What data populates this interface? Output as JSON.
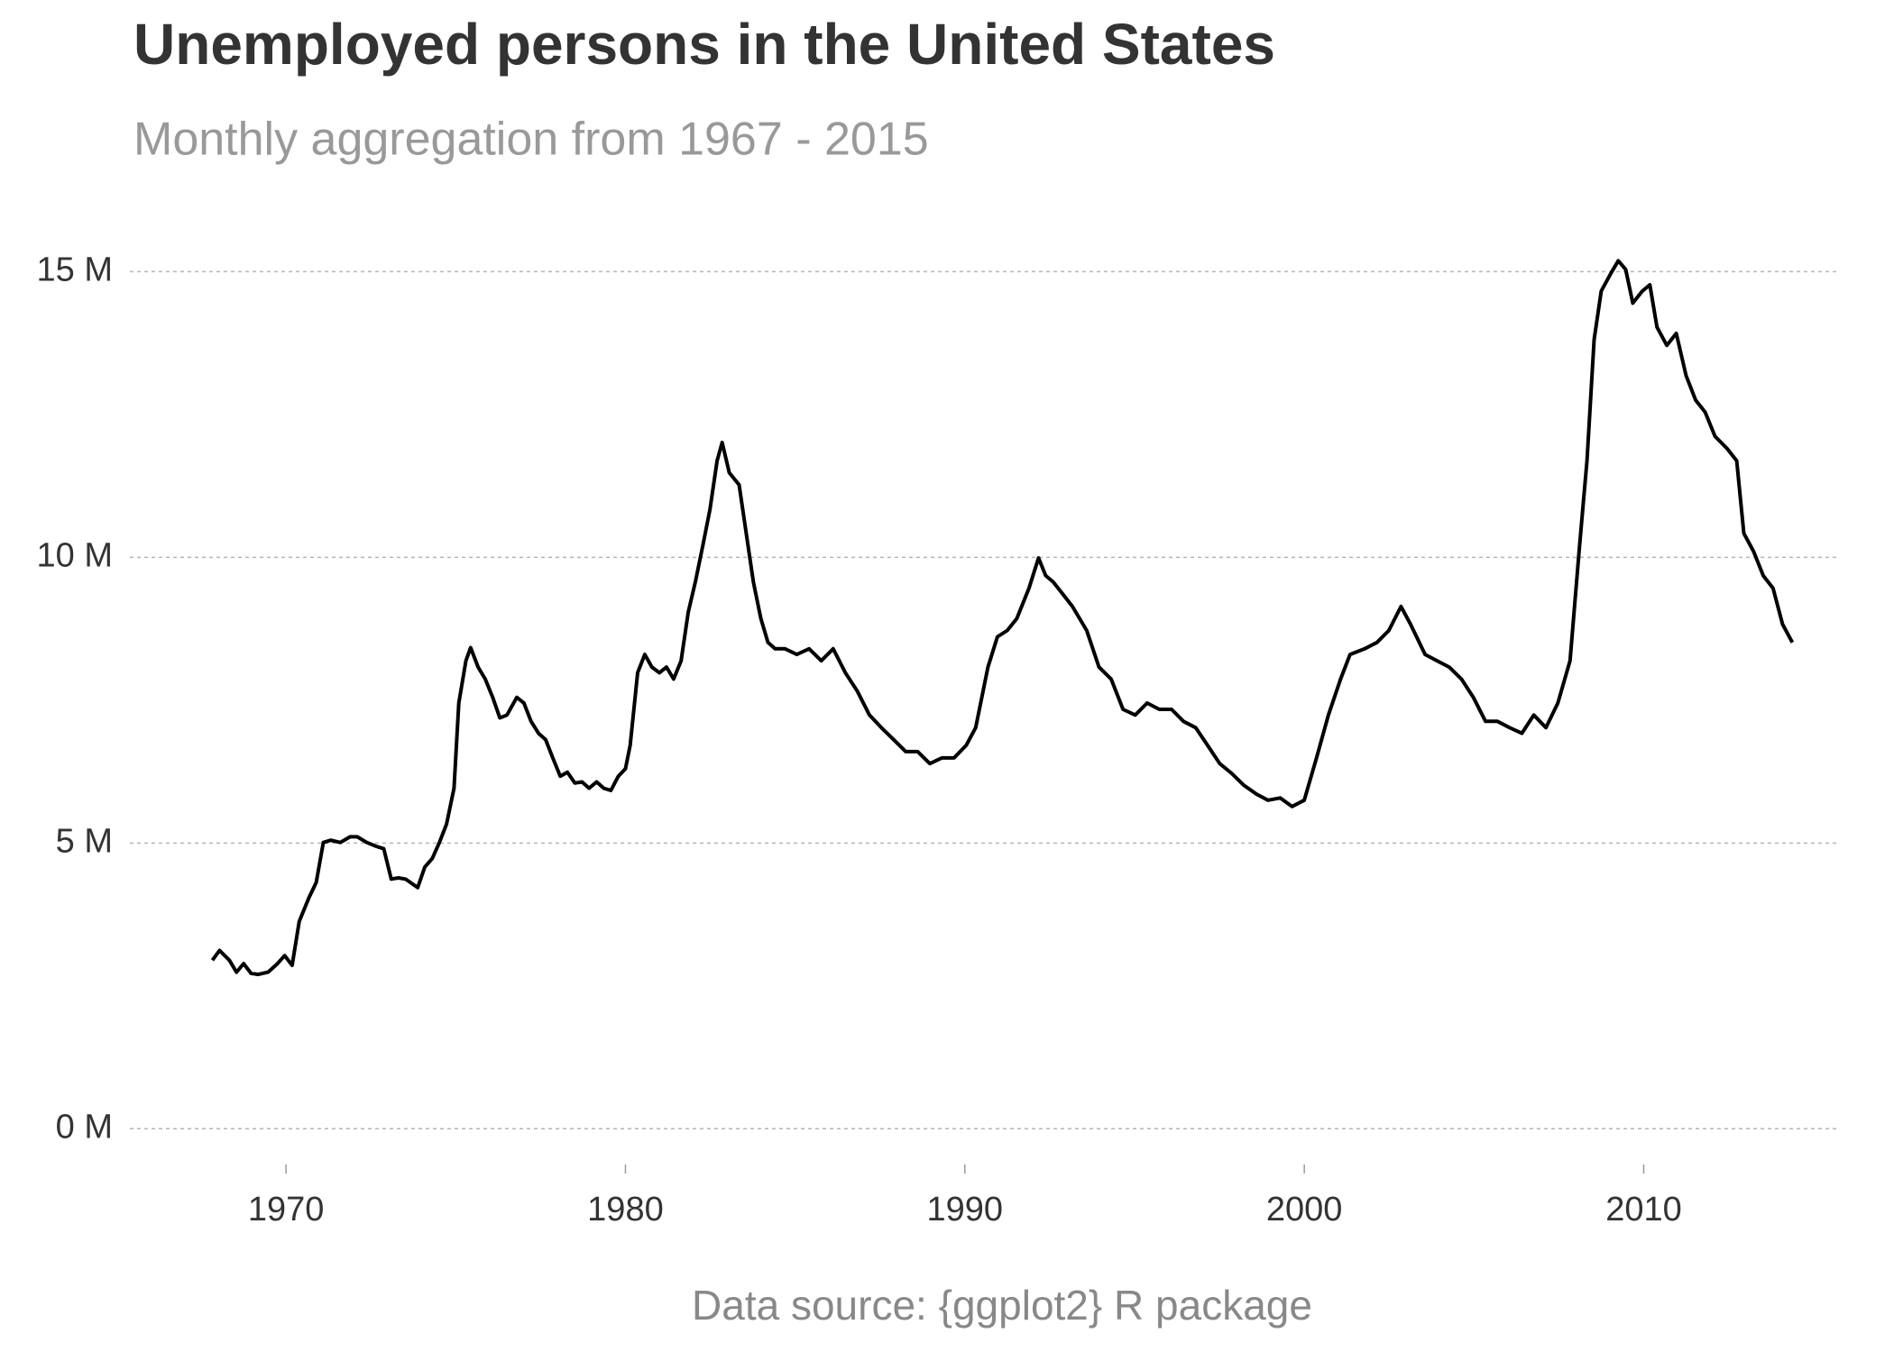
{
  "chart_data": {
    "type": "line",
    "title": "Unemployed persons in the United States",
    "subtitle": "Monthly aggregation from 1967 - 2015",
    "caption": "Data source: {ggplot2} R package",
    "color": "#000000",
    "grid": true,
    "xlim": [
      1965.4,
      2015.7
    ],
    "xticks": [
      1970,
      1980,
      1990,
      2000,
      2010
    ],
    "ylim": [
      -0.5,
      16
    ],
    "yticks": [
      {
        "value": 0,
        "label": "0 M"
      },
      {
        "value": 5,
        "label": "5 M"
      },
      {
        "value": 10,
        "label": "10 M"
      },
      {
        "value": 15,
        "label": "15 M"
      }
    ],
    "x": [
      1967.83,
      1968.04,
      1968.33,
      1968.54,
      1968.75,
      1968.97,
      1969.18,
      1969.47,
      1969.75,
      1969.96,
      1970.18,
      1970.39,
      1970.68,
      1970.89,
      1971.1,
      1971.32,
      1971.6,
      1971.89,
      1972.1,
      1972.38,
      1972.67,
      1972.88,
      1973.1,
      1973.31,
      1973.52,
      1973.88,
      1974.09,
      1974.31,
      1974.52,
      1974.73,
      1974.95,
      1975.09,
      1975.3,
      1975.44,
      1975.66,
      1975.87,
      1976.09,
      1976.3,
      1976.51,
      1976.8,
      1977.01,
      1977.22,
      1977.44,
      1977.65,
      1977.86,
      1978.08,
      1978.29,
      1978.51,
      1978.72,
      1978.93,
      1979.15,
      1979.36,
      1979.57,
      1979.79,
      1980.0,
      1980.14,
      1980.36,
      1980.57,
      1980.78,
      1981.0,
      1981.21,
      1981.42,
      1981.64,
      1981.85,
      1982.06,
      1982.28,
      1982.49,
      1982.7,
      1982.85,
      1983.06,
      1983.35,
      1983.56,
      1983.77,
      1983.99,
      1984.2,
      1984.41,
      1984.7,
      1985.05,
      1985.41,
      1985.77,
      1986.12,
      1986.48,
      1986.83,
      1987.19,
      1987.54,
      1987.9,
      1988.26,
      1988.61,
      1988.97,
      1989.32,
      1989.68,
      1990.04,
      1990.32,
      1990.68,
      1990.96,
      1991.25,
      1991.53,
      1991.89,
      1992.17,
      1992.38,
      1992.6,
      1992.88,
      1993.17,
      1993.59,
      1993.95,
      1994.31,
      1994.66,
      1995.02,
      1995.37,
      1995.73,
      1996.09,
      1996.44,
      1996.8,
      1997.15,
      1997.51,
      1997.86,
      1998.22,
      1998.58,
      1998.93,
      1999.29,
      1999.64,
      2000.0,
      2000.36,
      2000.71,
      2001.07,
      2001.35,
      2001.78,
      2002.14,
      2002.49,
      2002.85,
      2003.13,
      2003.56,
      2003.91,
      2004.27,
      2004.63,
      2004.98,
      2005.34,
      2005.69,
      2006.05,
      2006.41,
      2006.76,
      2007.12,
      2007.47,
      2007.83,
      2008.11,
      2008.33,
      2008.54,
      2008.75,
      2009.04,
      2009.25,
      2009.47,
      2009.68,
      2009.96,
      2010.18,
      2010.39,
      2010.68,
      2010.96,
      2011.25,
      2011.53,
      2011.81,
      2012.1,
      2012.46,
      2012.74,
      2012.95,
      2013.24,
      2013.52,
      2013.81,
      2014.09,
      2014.38
    ],
    "values": [
      2.95,
      3.12,
      2.95,
      2.74,
      2.89,
      2.72,
      2.7,
      2.74,
      2.89,
      3.03,
      2.86,
      3.63,
      4.05,
      4.31,
      5.01,
      5.05,
      5.01,
      5.11,
      5.11,
      5.01,
      4.94,
      4.9,
      4.37,
      4.39,
      4.37,
      4.22,
      4.58,
      4.73,
      5.01,
      5.33,
      5.96,
      7.45,
      8.19,
      8.42,
      8.08,
      7.87,
      7.55,
      7.19,
      7.24,
      7.55,
      7.45,
      7.13,
      6.92,
      6.81,
      6.49,
      6.17,
      6.24,
      6.05,
      6.07,
      5.96,
      6.07,
      5.96,
      5.92,
      6.17,
      6.3,
      6.71,
      7.98,
      8.3,
      8.08,
      7.98,
      8.08,
      7.87,
      8.19,
      9.04,
      9.57,
      10.21,
      10.84,
      11.69,
      12.01,
      11.48,
      11.27,
      10.42,
      9.57,
      8.93,
      8.51,
      8.4,
      8.4,
      8.3,
      8.4,
      8.19,
      8.4,
      7.98,
      7.66,
      7.24,
      7.02,
      6.81,
      6.6,
      6.6,
      6.39,
      6.49,
      6.49,
      6.71,
      7.02,
      8.08,
      8.61,
      8.72,
      8.93,
      9.46,
      9.99,
      9.68,
      9.57,
      9.36,
      9.14,
      8.72,
      8.08,
      7.87,
      7.34,
      7.24,
      7.45,
      7.34,
      7.34,
      7.13,
      7.02,
      6.71,
      6.39,
      6.22,
      6.01,
      5.86,
      5.75,
      5.79,
      5.64,
      5.75,
      6.49,
      7.24,
      7.87,
      8.3,
      8.4,
      8.51,
      8.72,
      9.14,
      8.83,
      8.3,
      8.19,
      8.08,
      7.87,
      7.55,
      7.13,
      7.13,
      7.02,
      6.92,
      7.24,
      7.02,
      7.45,
      8.19,
      10.21,
      11.69,
      13.81,
      14.66,
      14.98,
      15.19,
      15.04,
      14.45,
      14.66,
      14.77,
      14.03,
      13.71,
      13.92,
      13.18,
      12.75,
      12.54,
      12.12,
      11.9,
      11.69,
      10.42,
      10.1,
      9.68,
      9.46,
      8.83,
      8.51
    ]
  }
}
